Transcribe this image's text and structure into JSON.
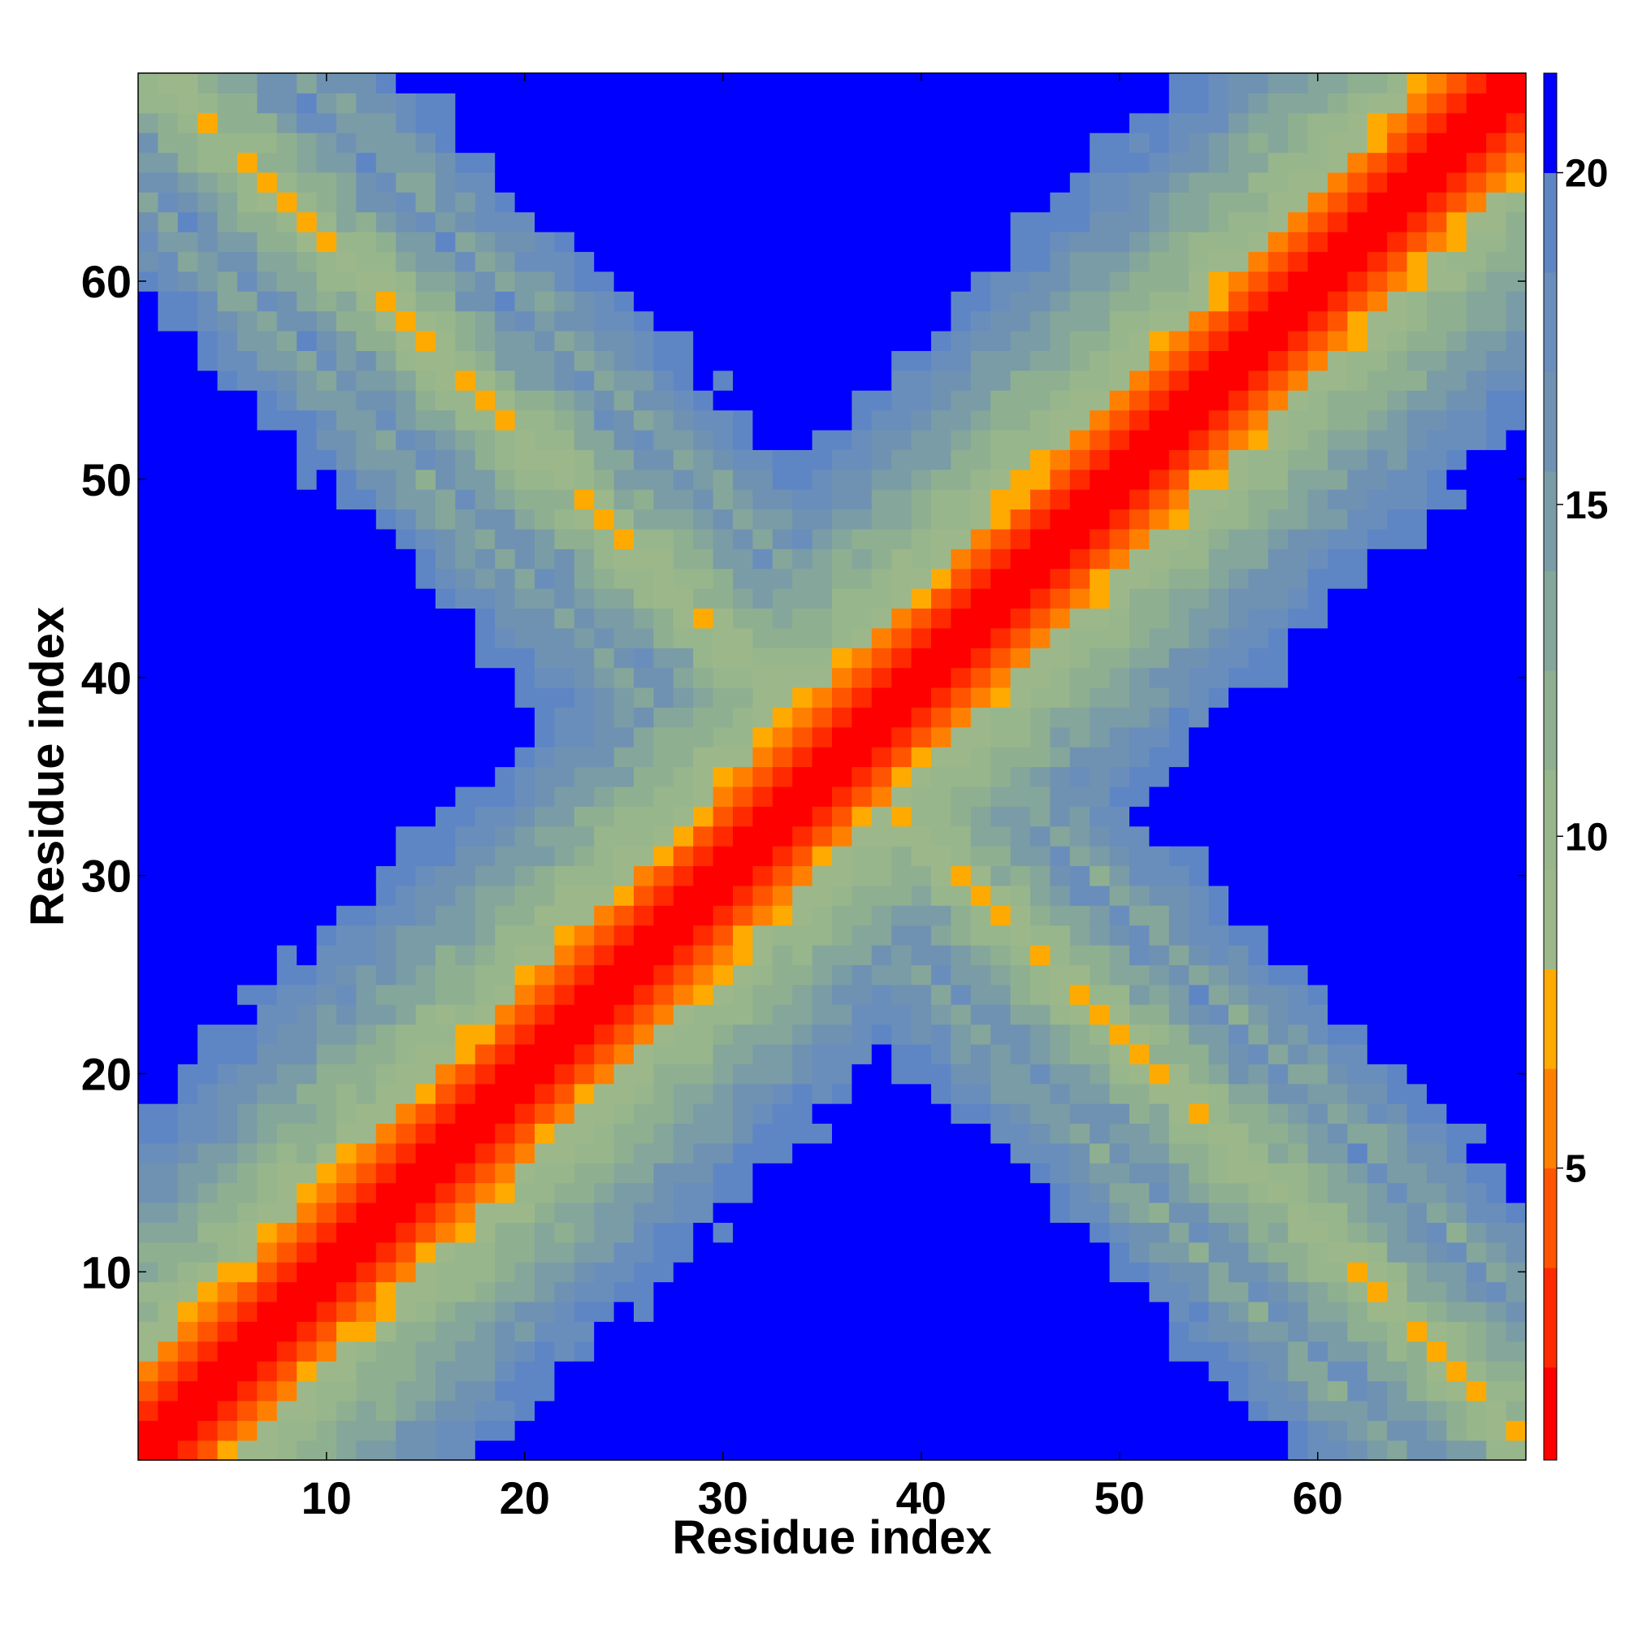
{
  "chart_data": {
    "type": "heatmap",
    "title": "",
    "xlabel": "Residue index",
    "ylabel": "Residue index",
    "n_residues": 70,
    "xlim": [
      0.5,
      70.5
    ],
    "ylim": [
      0.5,
      70.5
    ],
    "x_ticks": [
      10,
      20,
      30,
      40,
      50,
      60
    ],
    "y_ticks": [
      10,
      20,
      30,
      40,
      50,
      60
    ],
    "x_tick_labels": [
      "10",
      "20",
      "30",
      "40",
      "50",
      "60"
    ],
    "y_tick_labels": [
      "10",
      "20",
      "30",
      "40",
      "50",
      "60"
    ],
    "value_description": "pairwise residue distance; lower triangle and upper triangle differ (two conformations)",
    "colorbar": {
      "range": [
        0.6,
        21.5
      ],
      "ticks": [
        5,
        10,
        15,
        20
      ],
      "tick_labels": [
        "5",
        "10",
        "15",
        "20"
      ],
      "levels": [
        {
          "max": 2.0,
          "color": "#ff0000"
        },
        {
          "max": 3.5,
          "color": "#ff2a00"
        },
        {
          "max": 5.0,
          "color": "#ff5500"
        },
        {
          "max": 6.5,
          "color": "#ff8000"
        },
        {
          "max": 8.0,
          "color": "#ffaa00"
        },
        {
          "max": 9.5,
          "color": "#9cb88a"
        },
        {
          "max": 11.0,
          "color": "#98b68c"
        },
        {
          "max": 12.5,
          "color": "#8fb090"
        },
        {
          "max": 14.0,
          "color": "#85a69a"
        },
        {
          "max": 15.5,
          "color": "#7a9ca6"
        },
        {
          "max": 17.0,
          "color": "#6f92b2"
        },
        {
          "max": 18.5,
          "color": "#6a8ebc"
        },
        {
          "max": 20.0,
          "color": "#5f86c4"
        },
        {
          "max": 99,
          "color": "#0000ff"
        }
      ]
    },
    "band_lower_center_offset": 0,
    "band_half_width_cutoff": 17,
    "cross_hairpin": {
      "upper_left_contact_lines": [
        [
          12,
          61
        ],
        [
          16,
          57
        ],
        [
          20,
          54
        ],
        [
          24,
          50
        ],
        [
          28,
          46
        ],
        [
          32,
          43
        ],
        [
          34,
          40
        ]
      ],
      "lower_right_contact_lines": [
        [
          61,
          12
        ],
        [
          57,
          16
        ],
        [
          54,
          20
        ],
        [
          50,
          24
        ],
        [
          46,
          28
        ],
        [
          43,
          32
        ],
        [
          40,
          34
        ]
      ]
    }
  }
}
